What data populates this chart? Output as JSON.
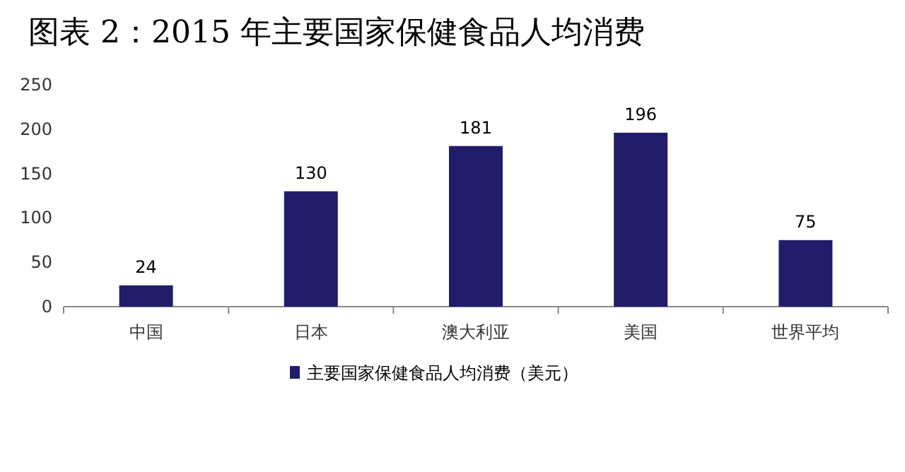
{
  "chart_data": {
    "type": "bar",
    "title": "图表 2：2015 年主要国家保健食品人均消费",
    "categories": [
      "中国",
      "日本",
      "澳大利亚",
      "美国",
      "世界平均"
    ],
    "series": [
      {
        "name": "主要国家保健食品人均消费（美元）",
        "color": "#211d6b",
        "values": [
          24,
          130,
          181,
          196,
          75
        ]
      }
    ],
    "ylim": [
      0,
      250
    ],
    "yticks": [
      0,
      50,
      100,
      150,
      200,
      250
    ],
    "data_labels": true,
    "legend": "bottom",
    "grid": false
  }
}
